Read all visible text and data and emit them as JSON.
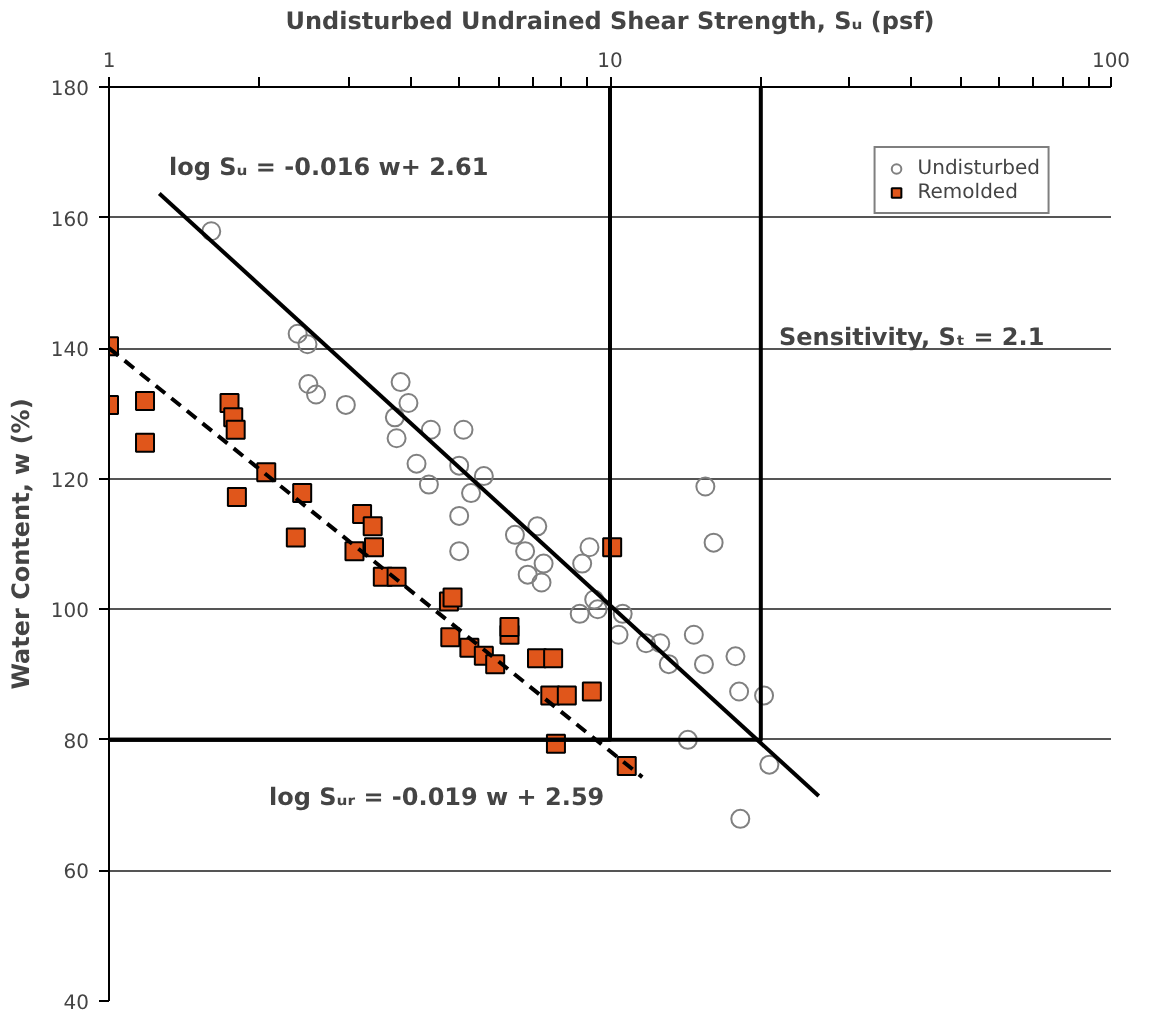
{
  "chart_data": {
    "type": "scatter",
    "xlabel": "Undisturbed Undrained Shear Strength, Sᵤ (psf)",
    "ylabel": "Water Content, w (%)",
    "log": "x",
    "xlim": [
      1,
      100
    ],
    "ylim": [
      40,
      180
    ],
    "xticks": [
      1,
      {
        "value": 2,
        "label": null
      },
      {
        "value": 3,
        "label": null
      },
      {
        "value": 4,
        "label": null
      },
      {
        "value": 5,
        "label": null
      },
      {
        "value": 6,
        "label": null
      },
      {
        "value": 7,
        "label": null
      },
      {
        "value": 8,
        "label": null
      },
      {
        "value": 9,
        "label": null
      },
      10,
      {
        "value": 20,
        "label": null
      },
      {
        "value": 30,
        "label": null
      },
      {
        "value": 40,
        "label": null
      },
      {
        "value": 50,
        "label": null
      },
      {
        "value": 60,
        "label": null
      },
      {
        "value": 70,
        "label": null
      },
      {
        "value": 80,
        "label": null
      },
      {
        "value": 90,
        "label": null
      },
      100
    ],
    "yticks": [
      40,
      60,
      80,
      100,
      120,
      140,
      160,
      180
    ],
    "grid": "y",
    "legend": "top right",
    "series": [
      {
        "name": "Undisturbed",
        "marker": "circle",
        "color": "#808080",
        "x": [
          1.6,
          2.38,
          2.49,
          2.5,
          2.59,
          2.97,
          3.82,
          3.96,
          3.72,
          3.75,
          4.39,
          5.1,
          4.11,
          5.0,
          4.35,
          5.0,
          5.0,
          5.28,
          5.6,
          6.46,
          6.77,
          7.16,
          7.37,
          6.85,
          7.3,
          9.3,
          8.7,
          9.45,
          10.4,
          10.6,
          8.8,
          9.1,
          11.8,
          12.6,
          13.1,
          14.7,
          15.4,
          15.5,
          16.1,
          18.1,
          17.8,
          20.3,
          14.3,
          20.8,
          18.2
        ],
        "values": [
          157.9,
          142.2,
          140.6,
          134.5,
          132.9,
          131.3,
          134.8,
          131.6,
          129.4,
          126.2,
          127.5,
          127.5,
          122.3,
          122,
          119.1,
          114.3,
          108.9,
          117.8,
          120.4,
          111.4,
          108.9,
          112.7,
          107,
          105.3,
          104.1,
          101.5,
          99.3,
          100,
          96.1,
          99.3,
          107,
          109.5,
          94.8,
          94.8,
          91.6,
          96.1,
          91.6,
          118.8,
          110.2,
          87.4,
          92.8,
          86.8,
          80,
          76.2,
          67.9
        ]
      },
      {
        "name": "Remolded",
        "marker": "square",
        "color": "#e0561b",
        "x": [
          1.0,
          1.0,
          1.18,
          1.18,
          1.74,
          1.77,
          1.79,
          1.8,
          2.06,
          2.43,
          2.36,
          3.2,
          3.36,
          3.09,
          3.38,
          3.52,
          3.75,
          4.77,
          4.8,
          4.85,
          5.24,
          5.6,
          5.9,
          6.3,
          6.3,
          7.15,
          7.7,
          7.6,
          8.2,
          9.2,
          10.1,
          7.8,
          10.8
        ],
        "values": [
          140.3,
          131.3,
          131.9,
          125.5,
          131.6,
          129.4,
          127.5,
          117.2,
          121,
          117.8,
          111,
          114.6,
          112.7,
          108.9,
          109.5,
          105,
          105,
          101.2,
          95.7,
          101.8,
          94.1,
          92.9,
          91.6,
          96.1,
          97.3,
          92.5,
          92.5,
          86.8,
          86.8,
          87.4,
          109.5,
          79.4,
          76
        ]
      },
      {
        "type": "line",
        "line_style": "solid",
        "color": "#000000",
        "x": [
          1.26,
          26.1
        ],
        "values": [
          163.7,
          71.4
        ]
      },
      {
        "type": "line",
        "line_style": "dashed",
        "color": "#000000",
        "x": [
          1.0,
          11.6
        ],
        "values": [
          140,
          74.3
        ]
      },
      {
        "type": "line",
        "line_style": "solid",
        "color": "#000000",
        "x": [
          1,
          10,
          10
        ],
        "values": [
          80,
          80,
          180
        ]
      },
      {
        "type": "line",
        "line_style": "solid",
        "color": "#000000",
        "x": [
          1,
          20,
          20
        ],
        "values": [
          80,
          80,
          180
        ]
      }
    ],
    "annotations": [
      "log Sᵤ = -0.016 w+ 2.61",
      "Sensitivity, Sₜ = 2.1",
      "log Sᵤᵣ =   -0.019 w + 2.59"
    ]
  }
}
